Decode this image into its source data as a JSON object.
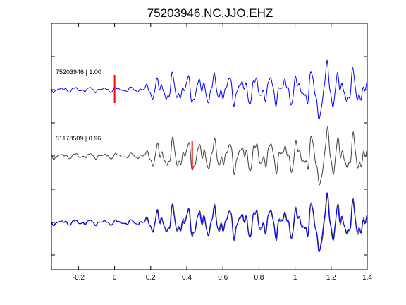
{
  "chart_data": {
    "type": "line",
    "title": "75203946.NC.JJO.EHZ",
    "xlabel": "",
    "ylabel": "",
    "xlim": [
      -0.35,
      1.4
    ],
    "xticks": [
      -0.2,
      0,
      0.2,
      0.4,
      0.6,
      0.8,
      1,
      1.2,
      1.4
    ],
    "xtick_labels": [
      "-0.2",
      "0",
      "0.2",
      "0.4",
      "0.6",
      "0.8",
      "1",
      "1.2",
      "1.4"
    ],
    "grid": false,
    "traces": [
      {
        "label": "75203946 | 1.00",
        "color": "#0000ff",
        "pick_time": 0.0,
        "pick_color": "#ff0000"
      },
      {
        "label": "51178509 | 0.96",
        "color": "#404040",
        "pick_time": 0.43,
        "pick_color": "#ff0000"
      }
    ],
    "overlay": {
      "description": "",
      "colors": [
        "#404040",
        "#0000ff"
      ]
    }
  }
}
